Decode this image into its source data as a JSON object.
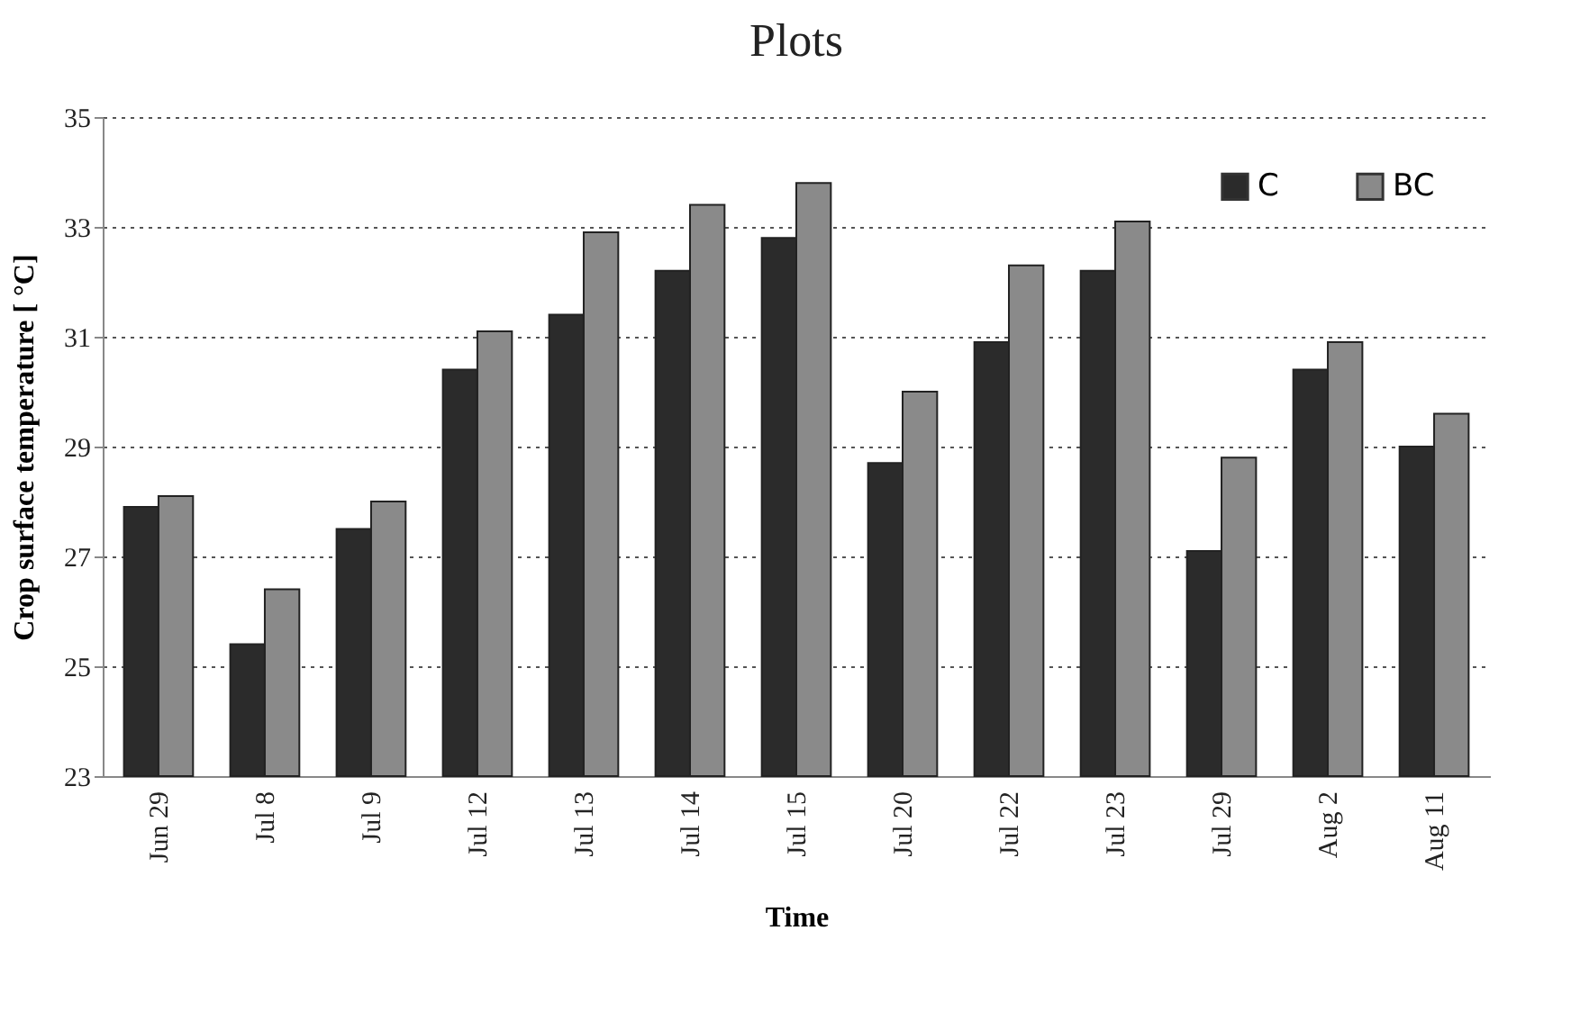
{
  "chart_data": {
    "type": "bar",
    "title": "Plots",
    "xlabel": "Time",
    "ylabel": "Crop  surface temperature  [ °C]",
    "categories": [
      "Jun 29",
      "Jul 8",
      "Jul 9",
      "Jul 12",
      "Jul 13",
      "Jul 14",
      "Jul 15",
      "Jul 20",
      "Jul 22",
      "Jul 23",
      "Jul 29",
      "Aug 2",
      "Aug 11"
    ],
    "series": [
      {
        "name": "C",
        "color": "#2b2b2b",
        "values": [
          27.9,
          25.4,
          27.5,
          30.4,
          31.4,
          32.2,
          32.8,
          28.7,
          30.9,
          32.2,
          27.1,
          30.4,
          29.0
        ]
      },
      {
        "name": "BC",
        "color": "#8a8a8a",
        "values": [
          28.1,
          26.4,
          28.0,
          31.1,
          32.9,
          33.4,
          33.8,
          30.0,
          32.3,
          33.1,
          28.8,
          30.9,
          29.6
        ]
      }
    ],
    "ylim": [
      23,
      35
    ],
    "yticks": [
      23,
      25,
      27,
      29,
      31,
      33,
      35
    ],
    "grid": "y",
    "legend": "top right"
  }
}
